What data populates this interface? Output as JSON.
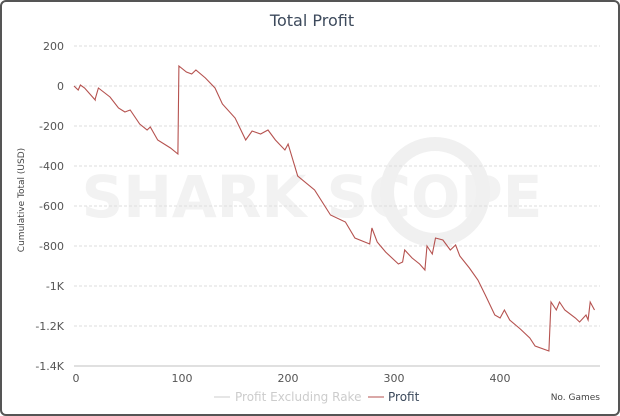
{
  "chart_data": {
    "type": "line",
    "title": "Total Profit",
    "xlabel": "No. Games",
    "ylabel": "Cumulative Total (USD)",
    "xlim": [
      0,
      490
    ],
    "ylim": [
      -1400,
      200
    ],
    "x_ticks": [
      0,
      100,
      200,
      300,
      400
    ],
    "y_ticks": [
      200,
      0,
      -200,
      -400,
      -600,
      -800,
      -1000,
      -1200,
      -1400
    ],
    "y_tick_labels": [
      "200",
      "0",
      "-200",
      "-400",
      "-600",
      "-800",
      "-1K",
      "-1.2K",
      "-1.4K"
    ],
    "grid": true,
    "legend_position": "bottom-center",
    "watermark": "SHARK SCOPE",
    "colors": {
      "profit": "#b5524f",
      "profit_excluding_rake": "#cccccc"
    },
    "series": [
      {
        "name": "Profit Excluding Rake",
        "visible": false,
        "points": []
      },
      {
        "name": "Profit",
        "visible": true,
        "points": [
          [
            0,
            0
          ],
          [
            4,
            -20
          ],
          [
            6,
            5
          ],
          [
            10,
            -10
          ],
          [
            20,
            -70
          ],
          [
            20,
            -65
          ],
          [
            23,
            -10
          ],
          [
            34,
            -55
          ],
          [
            42,
            -110
          ],
          [
            48,
            -130
          ],
          [
            53,
            -120
          ],
          [
            62,
            -190
          ],
          [
            69,
            -220
          ],
          [
            72,
            -205
          ],
          [
            79,
            -270
          ],
          [
            91,
            -310
          ],
          [
            98,
            -340
          ],
          [
            99,
            100
          ],
          [
            106,
            70
          ],
          [
            111,
            60
          ],
          [
            115,
            80
          ],
          [
            124,
            40
          ],
          [
            133,
            -10
          ],
          [
            140,
            -90
          ],
          [
            152,
            -160
          ],
          [
            162,
            -270
          ],
          [
            168,
            -225
          ],
          [
            176,
            -240
          ],
          [
            183,
            -220
          ],
          [
            190,
            -270
          ],
          [
            199,
            -320
          ],
          [
            202,
            -290
          ],
          [
            211,
            -450
          ],
          [
            227,
            -520
          ],
          [
            242,
            -645
          ],
          [
            256,
            -680
          ],
          [
            265,
            -760
          ],
          [
            279,
            -790
          ],
          [
            281,
            -710
          ],
          [
            286,
            -780
          ],
          [
            294,
            -830
          ],
          [
            306,
            -890
          ],
          [
            310,
            -880
          ],
          [
            312,
            -820
          ],
          [
            319,
            -860
          ],
          [
            326,
            -890
          ],
          [
            331,
            -920
          ],
          [
            333,
            -800
          ],
          [
            338,
            -840
          ],
          [
            341,
            -760
          ],
          [
            348,
            -770
          ],
          [
            355,
            -820
          ],
          [
            360,
            -795
          ],
          [
            364,
            -850
          ],
          [
            373,
            -910
          ],
          [
            381,
            -970
          ],
          [
            388,
            -1045
          ],
          [
            397,
            -1145
          ],
          [
            402,
            -1160
          ],
          [
            406,
            -1120
          ],
          [
            411,
            -1170
          ],
          [
            421,
            -1215
          ],
          [
            430,
            -1260
          ],
          [
            435,
            -1300
          ],
          [
            448,
            -1325
          ],
          [
            450,
            -1080
          ],
          [
            455,
            -1120
          ],
          [
            458,
            -1080
          ],
          [
            463,
            -1120
          ],
          [
            473,
            -1160
          ],
          [
            477,
            -1180
          ],
          [
            483,
            -1145
          ],
          [
            485,
            -1170
          ],
          [
            487,
            -1080
          ],
          [
            491,
            -1120
          ]
        ]
      }
    ]
  }
}
